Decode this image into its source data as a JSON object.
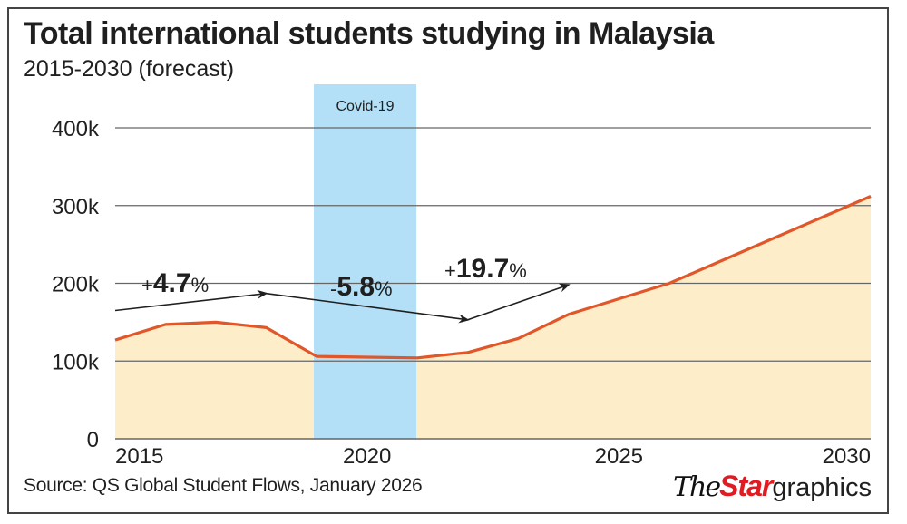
{
  "chart_data": {
    "type": "area",
    "title": "Total international students studying in Malaysia",
    "subtitle": "2015-2030 (forecast)",
    "xlabel": "",
    "ylabel": "",
    "x": [
      2015,
      2016,
      2017,
      2018,
      2019,
      2020,
      2021,
      2022,
      2023,
      2024,
      2025,
      2026,
      2027,
      2028,
      2029,
      2030
    ],
    "series": [
      {
        "name": "Total international students",
        "values": [
          127000,
          147000,
          150000,
          143000,
          106000,
          105000,
          104000,
          111000,
          129000,
          160000,
          180000,
          200000,
          228000,
          256000,
          284000,
          312000
        ]
      }
    ],
    "xlim": [
      2015,
      2030
    ],
    "ylim": [
      0,
      400000
    ],
    "y_ticks": [
      {
        "value": 0,
        "label": "0"
      },
      {
        "value": 100000,
        "label": "100k"
      },
      {
        "value": 200000,
        "label": "200k"
      },
      {
        "value": 300000,
        "label": "300k"
      },
      {
        "value": 400000,
        "label": "400k"
      }
    ],
    "x_ticks": [
      {
        "value": 2015,
        "label": "2015"
      },
      {
        "value": 2020,
        "label": "2020"
      },
      {
        "value": 2025,
        "label": "2025"
      },
      {
        "value": 2030,
        "label": "2030"
      }
    ],
    "grid": true,
    "highlight_band": {
      "label": "Covid-19",
      "from": 2019,
      "to": 2021
    },
    "annotations": [
      {
        "sign": "+",
        "number": "4.7",
        "unit": "%",
        "arrow_from": [
          2015,
          165000
        ],
        "arrow_to": [
          2018,
          187000
        ]
      },
      {
        "sign": "-",
        "number": "5.8",
        "unit": "%",
        "arrow_from": [
          2018,
          187000
        ],
        "arrow_to": [
          2022,
          153000
        ]
      },
      {
        "sign": "+",
        "number": "19.7",
        "unit": "%",
        "arrow_from": [
          2022,
          153000
        ],
        "arrow_to": [
          2024,
          198000
        ]
      }
    ],
    "colors": {
      "line": "#e0572a",
      "fill": "#fdedc8",
      "band": "#b3e0f7",
      "grid": "#666666",
      "arrow": "#1f1f1f"
    }
  },
  "source": "Source: QS Global Student Flows, January 2026",
  "logo": {
    "part1": "The",
    "part2": "Star",
    "part3": "graphics"
  }
}
